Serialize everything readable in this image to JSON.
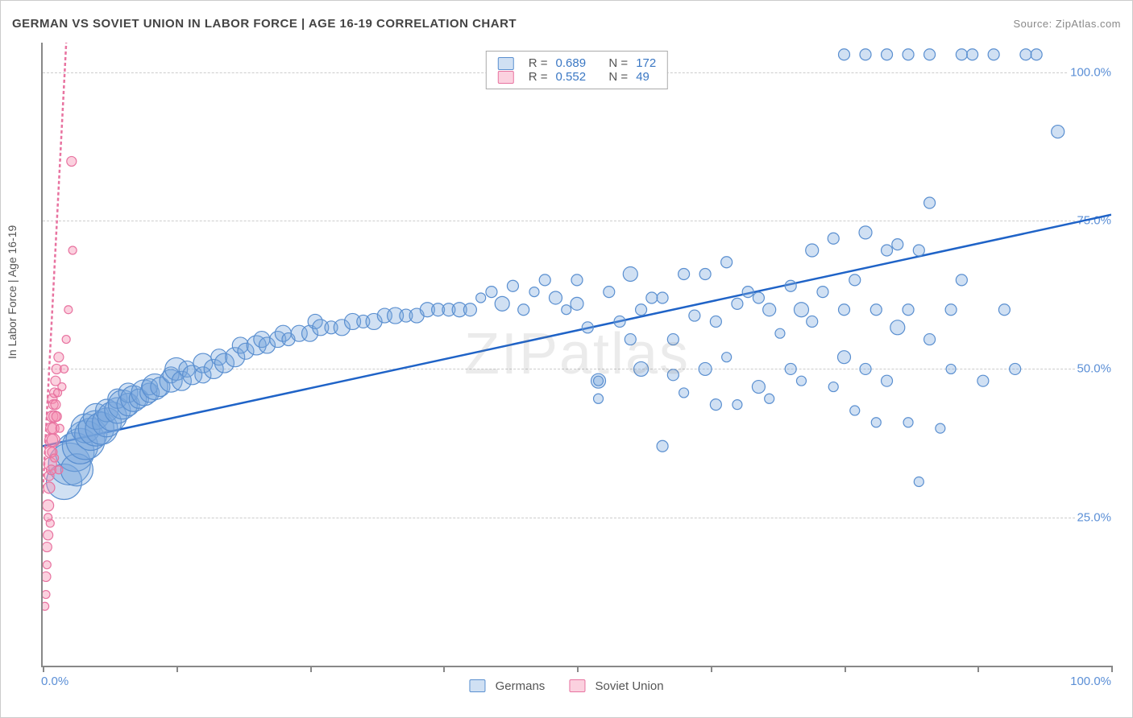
{
  "title": "GERMAN VS SOVIET UNION IN LABOR FORCE | AGE 16-19 CORRELATION CHART",
  "source": "Source: ZipAtlas.com",
  "watermark": "ZIPatlas",
  "ylabel": "In Labor Force | Age 16-19",
  "chart": {
    "type": "scatter",
    "xlim": [
      0,
      100
    ],
    "ylim": [
      0,
      105
    ],
    "x_tick_positions": [
      0,
      12.5,
      25,
      37.5,
      50,
      62.5,
      75,
      87.5,
      100
    ],
    "y_gridlines": [
      25,
      50,
      75,
      100
    ],
    "x_axis_labels": {
      "min": "0.0%",
      "max": "100.0%"
    },
    "y_axis_labels": [
      "25.0%",
      "50.0%",
      "75.0%",
      "100.0%"
    ],
    "background_color": "#ffffff",
    "grid_color": "#cccccc",
    "series": [
      {
        "name": "Germans",
        "legend_label": "Germans",
        "fill": "rgba(120,165,220,0.35)",
        "stroke": "#5a8fd0",
        "trend_stroke": "#1f63c7",
        "trend_dash": "none",
        "R": "0.689",
        "N": "172",
        "trend": {
          "x0": 0,
          "y0": 37,
          "x1": 100,
          "y1": 76
        },
        "points": [
          [
            2,
            31,
            22
          ],
          [
            2.5,
            34,
            26
          ],
          [
            3,
            36,
            24
          ],
          [
            3.2,
            33,
            20
          ],
          [
            3.5,
            37,
            22
          ],
          [
            4,
            38,
            24
          ],
          [
            4,
            40,
            18
          ],
          [
            4.5,
            39,
            20
          ],
          [
            5,
            40,
            22
          ],
          [
            5,
            42,
            16
          ],
          [
            5.5,
            40,
            20
          ],
          [
            6,
            41,
            18
          ],
          [
            6,
            43,
            14
          ],
          [
            6.5,
            42,
            18
          ],
          [
            7,
            43,
            16
          ],
          [
            7,
            45,
            12
          ],
          [
            7.5,
            44,
            18
          ],
          [
            8,
            44,
            14
          ],
          [
            8,
            46,
            12
          ],
          [
            8.5,
            45,
            16
          ],
          [
            9,
            45,
            12
          ],
          [
            9.5,
            46,
            16
          ],
          [
            10,
            46,
            12
          ],
          [
            10,
            47,
            10
          ],
          [
            10.5,
            47,
            16
          ],
          [
            11,
            47,
            12
          ],
          [
            12,
            48,
            14
          ],
          [
            12,
            49,
            10
          ],
          [
            12.5,
            50,
            14
          ],
          [
            13,
            48,
            12
          ],
          [
            13.5,
            50,
            10
          ],
          [
            14,
            49,
            12
          ],
          [
            15,
            51,
            12
          ],
          [
            15,
            49,
            10
          ],
          [
            16,
            50,
            12
          ],
          [
            16.5,
            52,
            10
          ],
          [
            17,
            51,
            12
          ],
          [
            18,
            52,
            12
          ],
          [
            18.5,
            54,
            10
          ],
          [
            19,
            53,
            10
          ],
          [
            20,
            54,
            12
          ],
          [
            20.5,
            55,
            10
          ],
          [
            21,
            54,
            10
          ],
          [
            22,
            55,
            10
          ],
          [
            22.5,
            56,
            10
          ],
          [
            23,
            55,
            8
          ],
          [
            24,
            56,
            10
          ],
          [
            25,
            56,
            10
          ],
          [
            25.5,
            58,
            9
          ],
          [
            26,
            57,
            10
          ],
          [
            27,
            57,
            8
          ],
          [
            28,
            57,
            10
          ],
          [
            29,
            58,
            10
          ],
          [
            30,
            58,
            8
          ],
          [
            31,
            58,
            10
          ],
          [
            32,
            59,
            9
          ],
          [
            33,
            59,
            10
          ],
          [
            34,
            59,
            8
          ],
          [
            35,
            59,
            9
          ],
          [
            36,
            60,
            9
          ],
          [
            37,
            60,
            8
          ],
          [
            38,
            60,
            8
          ],
          [
            39,
            60,
            9
          ],
          [
            40,
            60,
            8
          ],
          [
            41,
            62,
            6
          ],
          [
            42,
            63,
            7
          ],
          [
            43,
            61,
            9
          ],
          [
            44,
            64,
            7
          ],
          [
            45,
            60,
            7
          ],
          [
            46,
            63,
            6
          ],
          [
            47,
            65,
            7
          ],
          [
            48,
            62,
            8
          ],
          [
            49,
            60,
            6
          ],
          [
            50,
            61,
            8
          ],
          [
            50,
            65,
            7
          ],
          [
            51,
            57,
            7
          ],
          [
            52,
            48,
            9
          ],
          [
            52,
            48,
            6
          ],
          [
            52,
            45,
            6
          ],
          [
            53,
            63,
            7
          ],
          [
            54,
            58,
            7
          ],
          [
            55,
            66,
            9
          ],
          [
            55,
            55,
            7
          ],
          [
            56,
            60,
            7
          ],
          [
            56,
            50,
            9
          ],
          [
            57,
            62,
            7
          ],
          [
            58,
            62,
            7
          ],
          [
            58,
            37,
            7
          ],
          [
            59,
            49,
            7
          ],
          [
            59,
            55,
            7
          ],
          [
            60,
            66,
            7
          ],
          [
            60,
            46,
            6
          ],
          [
            61,
            59,
            7
          ],
          [
            62,
            66,
            7
          ],
          [
            62,
            50,
            8
          ],
          [
            63,
            44,
            7
          ],
          [
            63,
            58,
            7
          ],
          [
            64,
            52,
            6
          ],
          [
            64,
            68,
            7
          ],
          [
            65,
            61,
            7
          ],
          [
            65,
            44,
            6
          ],
          [
            66,
            63,
            7
          ],
          [
            67,
            47,
            8
          ],
          [
            67,
            62,
            7
          ],
          [
            68,
            60,
            8
          ],
          [
            68,
            45,
            6
          ],
          [
            69,
            56,
            6
          ],
          [
            70,
            50,
            7
          ],
          [
            70,
            64,
            7
          ],
          [
            71,
            60,
            9
          ],
          [
            71,
            48,
            6
          ],
          [
            72,
            70,
            8
          ],
          [
            72,
            58,
            7
          ],
          [
            73,
            63,
            7
          ],
          [
            74,
            47,
            6
          ],
          [
            74,
            72,
            7
          ],
          [
            75,
            52,
            8
          ],
          [
            75,
            60,
            7
          ],
          [
            76,
            43,
            6
          ],
          [
            76,
            65,
            7
          ],
          [
            77,
            73,
            8
          ],
          [
            77,
            50,
            7
          ],
          [
            78,
            60,
            7
          ],
          [
            78,
            41,
            6
          ],
          [
            79,
            70,
            7
          ],
          [
            79,
            48,
            7
          ],
          [
            80,
            71,
            7
          ],
          [
            80,
            57,
            9
          ],
          [
            81,
            41,
            6
          ],
          [
            81,
            60,
            7
          ],
          [
            82,
            70,
            7
          ],
          [
            82,
            31,
            6
          ],
          [
            83,
            78,
            7
          ],
          [
            83,
            55,
            7
          ],
          [
            84,
            40,
            6
          ],
          [
            85,
            60,
            7
          ],
          [
            85,
            50,
            6
          ],
          [
            86,
            65,
            7
          ],
          [
            87,
            103,
            7
          ],
          [
            75,
            103,
            7
          ],
          [
            77,
            103,
            7
          ],
          [
            79,
            103,
            7
          ],
          [
            81,
            103,
            7
          ],
          [
            83,
            103,
            7
          ],
          [
            86,
            103,
            7
          ],
          [
            89,
            103,
            7
          ],
          [
            92,
            103,
            7
          ],
          [
            93,
            103,
            7
          ],
          [
            95,
            90,
            8
          ],
          [
            88,
            48,
            7
          ],
          [
            90,
            60,
            7
          ],
          [
            91,
            50,
            7
          ]
        ]
      },
      {
        "name": "Soviet Union",
        "legend_label": "Soviet Union",
        "fill": "rgba(245,140,175,0.4)",
        "stroke": "#e873a0",
        "trend_stroke": "#e873a0",
        "trend_dash": "4,3",
        "R": "0.552",
        "N": "49",
        "trend": {
          "x0": 0,
          "y0": 29,
          "x1": 2.2,
          "y1": 105
        },
        "points": [
          [
            0.2,
            10,
            5
          ],
          [
            0.3,
            12,
            5
          ],
          [
            0.3,
            15,
            6
          ],
          [
            0.4,
            17,
            5
          ],
          [
            0.4,
            20,
            6
          ],
          [
            0.5,
            22,
            6
          ],
          [
            0.5,
            25,
            5
          ],
          [
            0.5,
            27,
            7
          ],
          [
            0.6,
            30,
            7
          ],
          [
            0.6,
            32,
            6
          ],
          [
            0.7,
            24,
            5
          ],
          [
            0.7,
            34,
            8
          ],
          [
            0.7,
            36,
            7
          ],
          [
            0.8,
            33,
            6
          ],
          [
            0.8,
            38,
            8
          ],
          [
            0.8,
            40,
            7
          ],
          [
            0.9,
            36,
            6
          ],
          [
            0.9,
            42,
            7
          ],
          [
            0.9,
            45,
            6
          ],
          [
            1.0,
            38,
            8
          ],
          [
            1.0,
            40,
            7
          ],
          [
            1.0,
            44,
            6
          ],
          [
            1.1,
            42,
            7
          ],
          [
            1.1,
            46,
            6
          ],
          [
            1.1,
            35,
            5
          ],
          [
            1.2,
            48,
            6
          ],
          [
            1.2,
            44,
            6
          ],
          [
            1.3,
            50,
            6
          ],
          [
            1.3,
            42,
            6
          ],
          [
            1.4,
            46,
            5
          ],
          [
            1.5,
            52,
            6
          ],
          [
            1.5,
            33,
            5
          ],
          [
            1.6,
            40,
            5
          ],
          [
            1.8,
            47,
            5
          ],
          [
            2.0,
            50,
            5
          ],
          [
            2.2,
            55,
            5
          ],
          [
            2.4,
            60,
            5
          ],
          [
            2.7,
            85,
            6
          ],
          [
            2.8,
            70,
            5
          ]
        ]
      }
    ]
  },
  "legend": {
    "r_prefix": "R =",
    "n_prefix": "N ="
  }
}
